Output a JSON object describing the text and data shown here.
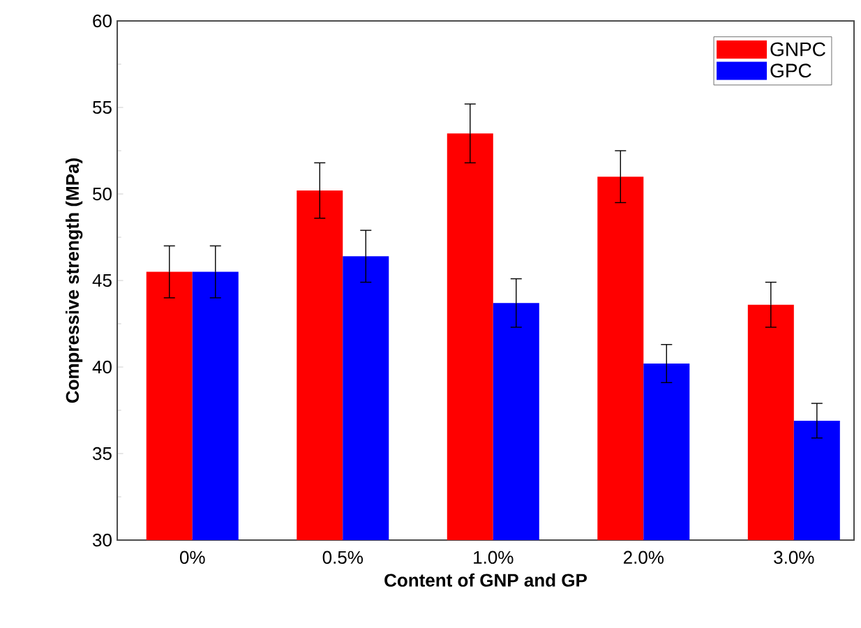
{
  "chart_data": {
    "type": "bar",
    "xlabel": "Content of GNP and GP",
    "ylabel": "Compressive strength (MPa)",
    "categories": [
      "0%",
      "0.5%",
      "1.0%",
      "2.0%",
      "3.0%"
    ],
    "series": [
      {
        "name": "GNPC",
        "color": "#ff0000",
        "values": [
          45.5,
          50.2,
          53.5,
          51.0,
          43.6
        ],
        "errors": [
          1.5,
          1.6,
          1.7,
          1.5,
          1.3
        ]
      },
      {
        "name": "GPC",
        "color": "#0000ff",
        "values": [
          45.5,
          46.4,
          43.7,
          40.2,
          36.9
        ],
        "errors": [
          1.5,
          1.5,
          1.4,
          1.1,
          1.0
        ]
      }
    ],
    "ylim": [
      30,
      60
    ],
    "yticks": [
      30,
      35,
      40,
      45,
      50,
      55,
      60
    ],
    "grid": false,
    "legend": "top right"
  }
}
